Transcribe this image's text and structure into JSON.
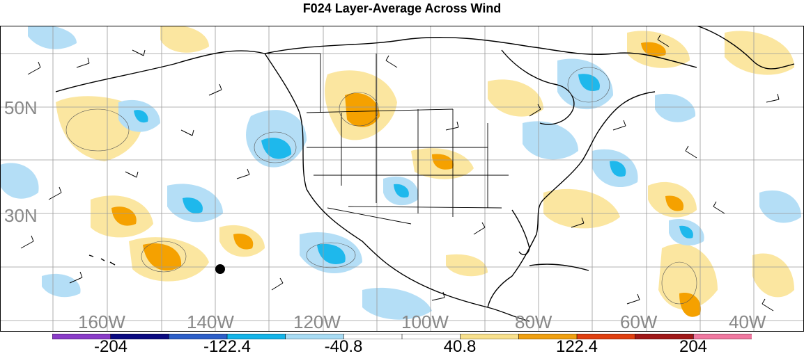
{
  "title": "F024 Layer-Average Across Wind",
  "lat_labels": [
    "50N",
    "30N"
  ],
  "lon_labels": [
    "160W",
    "140W",
    "120W",
    "100W",
    "80W",
    "60W",
    "40W"
  ],
  "colorbar": {
    "labels": [
      "-204",
      "-122.4",
      "-40.8",
      "40.8",
      "122.4",
      "204"
    ],
    "colors": [
      "#8a3cc8",
      "#0a0a80",
      "#2d5fc8",
      "#14b4e8",
      "#a8dcf4",
      "#ffffff",
      "#ffffff",
      "#f8e08c",
      "#f0a010",
      "#e04010",
      "#a01818",
      "#f078a0"
    ]
  },
  "colors": {
    "neg_light": "#b4def6",
    "neg_mid": "#1eb8ec",
    "pos_light": "#fbe6a0",
    "pos_mid": "#f5a100",
    "grid": "#9a9a9a"
  }
}
